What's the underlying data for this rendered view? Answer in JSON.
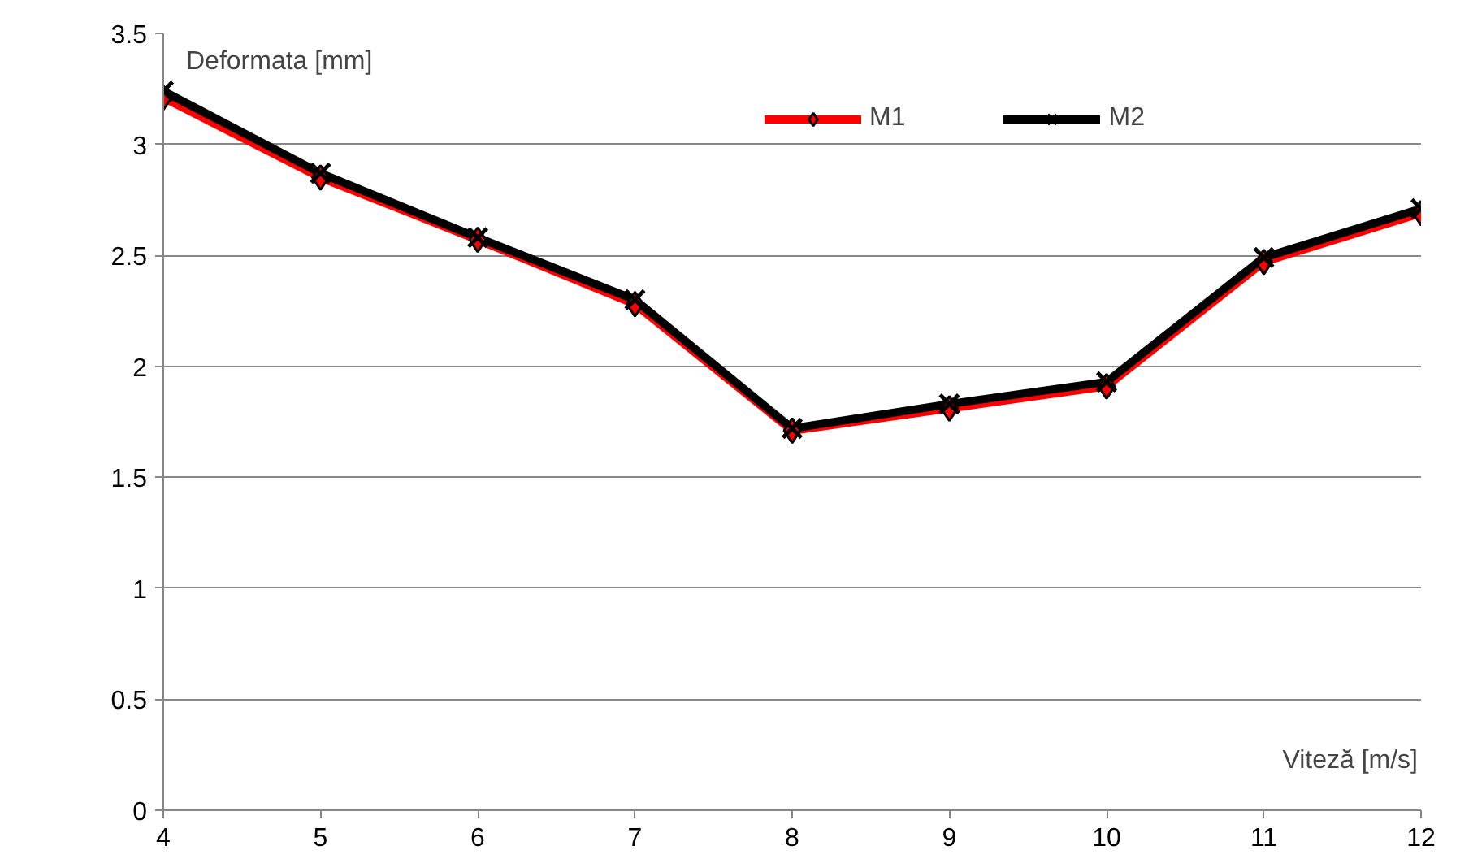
{
  "chart_data": {
    "type": "line",
    "xlabel": "Viteză [m/s]",
    "ylabel": "Deformata [mm]",
    "x": [
      4,
      5,
      6,
      7,
      8,
      9,
      10,
      11,
      12
    ],
    "series": [
      {
        "name": "M1",
        "color": "#ff0000",
        "marker": "diamond",
        "values": [
          3.21,
          2.85,
          2.57,
          2.28,
          1.71,
          1.81,
          1.91,
          2.47,
          2.69
        ]
      },
      {
        "name": "M2",
        "color": "#000000",
        "marker": "cross",
        "values": [
          3.24,
          2.87,
          2.58,
          2.3,
          1.72,
          1.83,
          1.93,
          2.49,
          2.71
        ]
      }
    ],
    "xlim": [
      4,
      12
    ],
    "xticks": [
      4,
      5,
      6,
      7,
      8,
      9,
      10,
      11,
      12
    ],
    "ylim": [
      0,
      3.5
    ],
    "yticks": [
      0,
      0.5,
      1,
      1.5,
      2,
      2.5,
      3,
      3.5
    ],
    "grid": "y",
    "legend": "top"
  }
}
